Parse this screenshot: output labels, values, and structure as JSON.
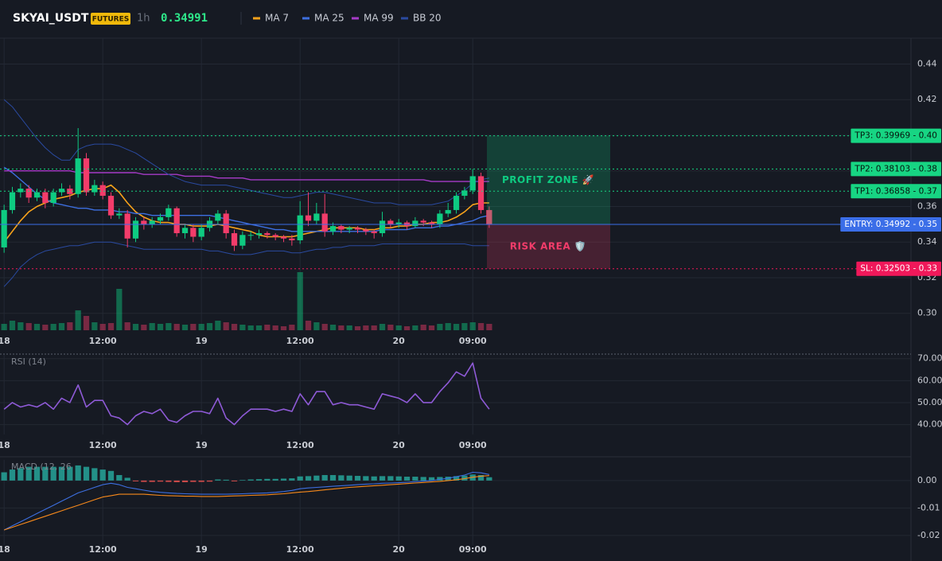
{
  "header": {
    "symbol": "SKYAI_USDT",
    "badge": "FUTURES",
    "interval": "1h",
    "price": 0.34991
  },
  "chart_data": [
    {
      "type": "candlestick",
      "xlim": [
        -0.5,
        110.3
      ],
      "xticks": [
        {
          "value": 0,
          "label": "18"
        },
        {
          "value": 12,
          "label": "12:00"
        },
        {
          "value": 24,
          "label": "19"
        },
        {
          "value": 36,
          "label": "12:00"
        },
        {
          "value": 48,
          "label": "20"
        },
        {
          "value": 57,
          "label": "09:00"
        }
      ],
      "ylim": [
        0.2905,
        0.4545
      ],
      "yticks": [
        0.44,
        0.42,
        {
          "value": 0.4,
          "label": "0.40"
        },
        0.38,
        0.36,
        0.34,
        0.32,
        {
          "value": 0.3,
          "label": "0.30"
        }
      ],
      "grid": true,
      "up_color": "#0ecb81",
      "down_color": "#f23c6a",
      "open": [
        0.337,
        0.358,
        0.368,
        0.37,
        0.365,
        0.368,
        0.362,
        0.368,
        0.37,
        0.367,
        0.387,
        0.368,
        0.372,
        0.366,
        0.355,
        0.356,
        0.342,
        0.352,
        0.35,
        0.352,
        0.354,
        0.359,
        0.345,
        0.348,
        0.343,
        0.348,
        0.352,
        0.356,
        0.345,
        0.338,
        0.344,
        0.344,
        0.345,
        0.344,
        0.343,
        0.342,
        0.341,
        0.355,
        0.352,
        0.356,
        0.346,
        0.349,
        0.347,
        0.348,
        0.347,
        0.346,
        0.345,
        0.352,
        0.35,
        0.351,
        0.349,
        0.352,
        0.351,
        0.35,
        0.356,
        0.358,
        0.366,
        0.369,
        0.377,
        0.358
      ],
      "high": [
        0.361,
        0.371,
        0.373,
        0.372,
        0.37,
        0.37,
        0.37,
        0.373,
        0.372,
        0.404,
        0.39,
        0.375,
        0.374,
        0.368,
        0.359,
        0.358,
        0.354,
        0.354,
        0.354,
        0.356,
        0.361,
        0.36,
        0.35,
        0.35,
        0.35,
        0.354,
        0.358,
        0.358,
        0.347,
        0.346,
        0.346,
        0.347,
        0.346,
        0.345,
        0.344,
        0.344,
        0.363,
        0.368,
        0.362,
        0.367,
        0.351,
        0.35,
        0.349,
        0.349,
        0.348,
        0.347,
        0.357,
        0.353,
        0.353,
        0.352,
        0.354,
        0.353,
        0.352,
        0.358,
        0.362,
        0.368,
        0.371,
        0.381,
        0.379,
        0.36
      ],
      "low": [
        0.334,
        0.356,
        0.365,
        0.362,
        0.363,
        0.359,
        0.36,
        0.366,
        0.364,
        0.365,
        0.366,
        0.366,
        0.364,
        0.353,
        0.353,
        0.337,
        0.34,
        0.347,
        0.348,
        0.35,
        0.352,
        0.343,
        0.342,
        0.34,
        0.341,
        0.346,
        0.35,
        0.342,
        0.335,
        0.336,
        0.341,
        0.342,
        0.342,
        0.341,
        0.34,
        0.338,
        0.339,
        0.349,
        0.35,
        0.343,
        0.344,
        0.345,
        0.345,
        0.345,
        0.344,
        0.342,
        0.343,
        0.348,
        0.348,
        0.347,
        0.348,
        0.349,
        0.348,
        0.348,
        0.354,
        0.356,
        0.364,
        0.367,
        0.356,
        0.348
      ],
      "close": [
        0.358,
        0.368,
        0.37,
        0.365,
        0.368,
        0.362,
        0.368,
        0.37,
        0.367,
        0.387,
        0.368,
        0.372,
        0.366,
        0.355,
        0.356,
        0.342,
        0.352,
        0.35,
        0.352,
        0.354,
        0.359,
        0.345,
        0.348,
        0.343,
        0.348,
        0.352,
        0.356,
        0.345,
        0.338,
        0.344,
        0.344,
        0.345,
        0.344,
        0.343,
        0.342,
        0.341,
        0.355,
        0.352,
        0.356,
        0.346,
        0.349,
        0.347,
        0.348,
        0.347,
        0.346,
        0.345,
        0.352,
        0.35,
        0.351,
        0.349,
        0.352,
        0.351,
        0.35,
        0.356,
        0.358,
        0.366,
        0.369,
        0.377,
        0.358,
        0.3499
      ],
      "volume": [
        8,
        12,
        10,
        9,
        8,
        7,
        8,
        9,
        10,
        25,
        18,
        10,
        8,
        9,
        52,
        10,
        8,
        7,
        9,
        8,
        9,
        8,
        7,
        8,
        8,
        9,
        12,
        10,
        8,
        7,
        6,
        6,
        7,
        6,
        5,
        7,
        73,
        12,
        10,
        8,
        7,
        6,
        6,
        5,
        6,
        6,
        8,
        7,
        6,
        5,
        6,
        7,
        6,
        8,
        9,
        8,
        9,
        10,
        9,
        8
      ],
      "vlim": [
        0,
        100
      ],
      "overlays": [
        {
          "name": "MA 7",
          "color": "#f7a21b",
          "values": [
            0.34,
            0.346,
            0.352,
            0.357,
            0.36,
            0.362,
            0.364,
            0.365,
            0.366,
            0.368,
            0.369,
            0.37,
            0.37,
            0.372,
            0.368,
            0.362,
            0.357,
            0.354,
            0.352,
            0.351,
            0.351,
            0.35,
            0.35,
            0.349,
            0.349,
            0.349,
            0.35,
            0.349,
            0.348,
            0.347,
            0.346,
            0.344,
            0.343,
            0.343,
            0.343,
            0.343,
            0.344,
            0.345,
            0.346,
            0.347,
            0.348,
            0.348,
            0.348,
            0.348,
            0.347,
            0.347,
            0.348,
            0.348,
            0.349,
            0.349,
            0.35,
            0.35,
            0.351,
            0.351,
            0.352,
            0.354,
            0.357,
            0.361,
            0.362,
            0.362
          ]
        },
        {
          "name": "MA 25",
          "color": "#3d6fe0",
          "values": [
            0.382,
            0.379,
            0.375,
            0.371,
            0.367,
            0.364,
            0.362,
            0.361,
            0.36,
            0.359,
            0.359,
            0.358,
            0.358,
            0.358,
            0.357,
            0.357,
            0.356,
            0.356,
            0.355,
            0.355,
            0.355,
            0.355,
            0.355,
            0.355,
            0.355,
            0.355,
            0.354,
            0.353,
            0.352,
            0.351,
            0.35,
            0.349,
            0.348,
            0.347,
            0.347,
            0.346,
            0.346,
            0.346,
            0.346,
            0.346,
            0.346,
            0.346,
            0.346,
            0.346,
            0.346,
            0.346,
            0.347,
            0.347,
            0.347,
            0.347,
            0.348,
            0.348,
            0.348,
            0.349,
            0.349,
            0.35,
            0.351,
            0.352,
            0.354,
            0.355
          ]
        },
        {
          "name": "MA 99",
          "color": "#a63bc7",
          "values": [
            0.38,
            0.38,
            0.38,
            0.38,
            0.38,
            0.38,
            0.38,
            0.38,
            0.38,
            0.379,
            0.379,
            0.379,
            0.379,
            0.379,
            0.379,
            0.379,
            0.379,
            0.378,
            0.378,
            0.378,
            0.378,
            0.378,
            0.377,
            0.377,
            0.377,
            0.377,
            0.376,
            0.376,
            0.376,
            0.376,
            0.375,
            0.375,
            0.375,
            0.375,
            0.375,
            0.375,
            0.375,
            0.375,
            0.375,
            0.375,
            0.375,
            0.375,
            0.375,
            0.375,
            0.375,
            0.375,
            0.375,
            0.375,
            0.375,
            0.375,
            0.375,
            0.375,
            0.374,
            0.374,
            0.374,
            0.374,
            0.374,
            0.374,
            0.374,
            0.374
          ]
        },
        {
          "name": "BB 20",
          "color": "#2a4aa0",
          "upper": [
            0.42,
            0.416,
            0.41,
            0.404,
            0.398,
            0.393,
            0.389,
            0.386,
            0.386,
            0.392,
            0.394,
            0.395,
            0.395,
            0.395,
            0.394,
            0.392,
            0.39,
            0.387,
            0.384,
            0.381,
            0.378,
            0.376,
            0.374,
            0.373,
            0.372,
            0.372,
            0.372,
            0.372,
            0.371,
            0.37,
            0.369,
            0.368,
            0.367,
            0.366,
            0.365,
            0.365,
            0.366,
            0.367,
            0.368,
            0.368,
            0.367,
            0.366,
            0.365,
            0.364,
            0.363,
            0.362,
            0.362,
            0.362,
            0.361,
            0.361,
            0.361,
            0.361,
            0.361,
            0.362,
            0.363,
            0.366,
            0.369,
            0.373,
            0.375,
            0.376
          ],
          "lower": [
            0.315,
            0.32,
            0.326,
            0.33,
            0.333,
            0.335,
            0.336,
            0.337,
            0.338,
            0.338,
            0.339,
            0.34,
            0.34,
            0.34,
            0.339,
            0.338,
            0.337,
            0.336,
            0.336,
            0.336,
            0.336,
            0.336,
            0.336,
            0.336,
            0.336,
            0.335,
            0.335,
            0.334,
            0.333,
            0.333,
            0.333,
            0.334,
            0.335,
            0.335,
            0.335,
            0.334,
            0.334,
            0.335,
            0.336,
            0.336,
            0.337,
            0.337,
            0.338,
            0.338,
            0.338,
            0.338,
            0.339,
            0.339,
            0.339,
            0.339,
            0.339,
            0.339,
            0.339,
            0.339,
            0.339,
            0.339,
            0.339,
            0.338,
            0.338,
            0.338
          ]
        }
      ],
      "levels": [
        {
          "value": 0.39969,
          "label": "TP3: 0.39969 - 0.40",
          "color": "#17d583",
          "label_color": "#06140d",
          "dashed": true
        },
        {
          "value": 0.38103,
          "label": "TP2: 0.38103 - 0.38",
          "color": "#17d583",
          "label_color": "#06140d",
          "dashed": true
        },
        {
          "value": 0.36858,
          "label": "TP1: 0.36858 - 0.37",
          "color": "#17d583",
          "label_color": "#06140d",
          "dashed": true
        },
        {
          "value": 0.34992,
          "label": "ENTRY: 0.34992 - 0.35",
          "color": "#3b6ee8",
          "label_color": "#ffffff",
          "dashed": false
        },
        {
          "value": 0.32503,
          "label": "SL: 0.32503 - 0.33",
          "color": "#f0185a",
          "label_color": "#ffffff",
          "dashed": true
        }
      ],
      "zones": [
        {
          "label": "PROFIT ZONE 🚀",
          "from": 0.34992,
          "to": 0.39969,
          "color": "#0ecb81"
        },
        {
          "label": "RISK AREA 🛡️",
          "from": 0.32503,
          "to": 0.34992,
          "color": "#f23c6a"
        }
      ]
    },
    {
      "type": "line",
      "title": "RSI (14)",
      "xlim": [
        -0.5,
        110.3
      ],
      "xticks": [
        {
          "value": 0,
          "label": "18"
        },
        {
          "value": 12,
          "label": "12:00"
        },
        {
          "value": 24,
          "label": "19"
        },
        {
          "value": 36,
          "label": "12:00"
        },
        {
          "value": 48,
          "label": "20"
        },
        {
          "value": 57,
          "label": "09:00"
        }
      ],
      "ylim": [
        35.5,
        71.7
      ],
      "yticks": [
        {
          "value": 70,
          "label": "70.00"
        },
        {
          "value": 60,
          "label": "60.00"
        },
        {
          "value": 50,
          "label": "50.00"
        },
        {
          "value": 40,
          "label": "40.00"
        }
      ],
      "grid": true,
      "color": "#8e5ad6",
      "values": [
        47,
        50,
        48,
        49,
        48,
        50,
        47,
        52,
        50,
        58,
        48,
        51,
        51,
        44,
        43,
        40,
        44,
        46,
        45,
        47,
        42,
        41,
        44,
        46,
        46,
        45,
        52,
        43,
        40,
        44,
        47,
        47,
        47,
        46,
        47,
        46,
        54,
        49,
        55,
        55,
        49,
        50,
        49,
        49,
        48,
        47,
        54,
        53,
        52,
        50,
        54,
        50,
        50,
        55,
        59,
        64,
        62,
        68,
        52,
        47
      ]
    },
    {
      "type": "bar",
      "title": "MACD (12, 26",
      "xlim": [
        -0.5,
        110.3
      ],
      "xticks": [
        {
          "value": 0,
          "label": "18"
        },
        {
          "value": 12,
          "label": "12:00"
        },
        {
          "value": 24,
          "label": "19"
        },
        {
          "value": 36,
          "label": "12:00"
        },
        {
          "value": 48,
          "label": "20"
        },
        {
          "value": 57,
          "label": "09:00"
        }
      ],
      "ylim": [
        -0.0235,
        0.0075
      ],
      "yticks": [
        {
          "value": 0,
          "label": "0.00"
        },
        {
          "value": -0.01,
          "label": "-0.01"
        },
        {
          "value": -0.02,
          "label": "-0.02"
        }
      ],
      "grid": true,
      "up_color": "#26a69a",
      "down_color": "#ef5350",
      "values": [
        0.003,
        0.004,
        0.0045,
        0.005,
        0.005,
        0.005,
        0.005,
        0.005,
        0.005,
        0.0055,
        0.005,
        0.0045,
        0.004,
        0.0035,
        0.002,
        0.001,
        -0.0003,
        -0.0005,
        -0.0005,
        -0.0004,
        -0.0005,
        -0.0006,
        -0.0006,
        -0.0005,
        -0.0005,
        -0.0004,
        0.0004,
        0.0003,
        -0.0003,
        0.0002,
        0.0004,
        0.0005,
        0.0006,
        0.0006,
        0.0007,
        0.0008,
        0.0015,
        0.0016,
        0.0018,
        0.002,
        0.002,
        0.0019,
        0.0018,
        0.0017,
        0.0016,
        0.0015,
        0.0016,
        0.0016,
        0.0015,
        0.0014,
        0.0014,
        0.0013,
        0.0012,
        0.0013,
        0.0014,
        0.0016,
        0.0018,
        0.0022,
        0.002,
        0.0012
      ],
      "series": [
        {
          "color": "#3d6fe0",
          "values": [
            -0.018,
            -0.0165,
            -0.015,
            -0.0135,
            -0.012,
            -0.0105,
            -0.009,
            -0.0075,
            -0.006,
            -0.0045,
            -0.0035,
            -0.0025,
            -0.0015,
            -0.001,
            -0.0015,
            -0.0025,
            -0.003,
            -0.0035,
            -0.004,
            -0.0043,
            -0.0045,
            -0.0047,
            -0.0048,
            -0.0049,
            -0.005,
            -0.005,
            -0.005,
            -0.005,
            -0.0049,
            -0.0048,
            -0.0047,
            -0.0046,
            -0.0045,
            -0.0043,
            -0.004,
            -0.0036,
            -0.003,
            -0.0027,
            -0.0025,
            -0.0023,
            -0.0021,
            -0.0019,
            -0.0017,
            -0.0015,
            -0.0013,
            -0.0012,
            -0.001,
            -0.0009,
            -0.0008,
            -0.0006,
            -0.0004,
            -0.0002,
            0,
            0.0004,
            0.0008,
            0.0014,
            0.002,
            0.003,
            0.0028,
            0.0022
          ]
        },
        {
          "color": "#f7891b",
          "values": [
            -0.018,
            -0.017,
            -0.016,
            -0.015,
            -0.014,
            -0.013,
            -0.012,
            -0.011,
            -0.01,
            -0.009,
            -0.008,
            -0.007,
            -0.006,
            -0.0055,
            -0.005,
            -0.005,
            -0.005,
            -0.005,
            -0.0052,
            -0.0054,
            -0.0055,
            -0.0056,
            -0.0057,
            -0.0057,
            -0.0058,
            -0.0058,
            -0.0058,
            -0.0057,
            -0.0056,
            -0.0055,
            -0.0054,
            -0.0053,
            -0.0052,
            -0.005,
            -0.0048,
            -0.0045,
            -0.0042,
            -0.004,
            -0.0037,
            -0.0034,
            -0.0031,
            -0.0028,
            -0.0025,
            -0.0023,
            -0.0021,
            -0.0019,
            -0.0017,
            -0.0015,
            -0.0013,
            -0.0011,
            -0.0009,
            -0.0007,
            -0.0005,
            -0.0003,
            0,
            0.0003,
            0.0007,
            0.0012,
            0.0016,
            0.0018
          ]
        }
      ]
    }
  ]
}
